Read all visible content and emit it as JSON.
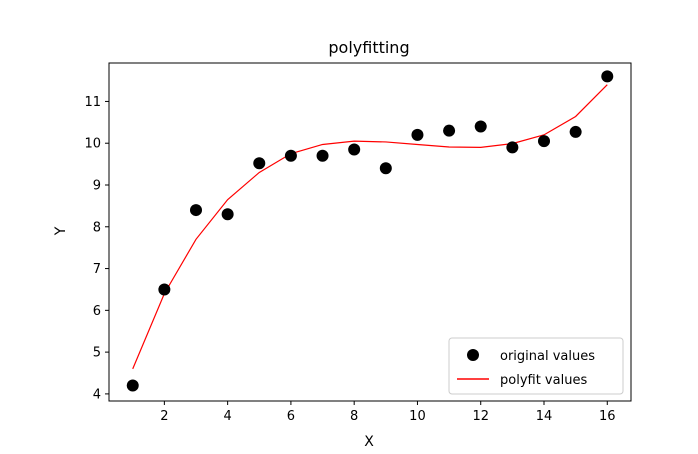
{
  "chart_data": {
    "type": "scatter",
    "title": "polyfitting",
    "xlabel": "X",
    "ylabel": "Y",
    "xlim": [
      0.25,
      16.75
    ],
    "ylim": [
      3.83,
      11.92
    ],
    "xticks": [
      2,
      4,
      6,
      8,
      10,
      12,
      14,
      16
    ],
    "yticks": [
      4,
      5,
      6,
      7,
      8,
      9,
      10,
      11
    ],
    "grid": false,
    "legend_position": "lower-right",
    "series": [
      {
        "name": "original values",
        "kind": "scatter",
        "color": "#000000",
        "x": [
          1,
          2,
          3,
          4,
          5,
          6,
          7,
          8,
          9,
          10,
          11,
          12,
          13,
          14,
          15,
          16
        ],
        "y": [
          4.2,
          6.5,
          8.4,
          8.3,
          9.52,
          9.7,
          9.7,
          9.85,
          9.4,
          10.2,
          10.3,
          10.4,
          9.9,
          10.05,
          10.27,
          11.6
        ]
      },
      {
        "name": "polyfit values",
        "kind": "line",
        "color": "#ff0000",
        "x": [
          1,
          2,
          3,
          4,
          5,
          6,
          7,
          8,
          9,
          10,
          11,
          12,
          13,
          14,
          15,
          16
        ],
        "y": [
          4.6,
          6.4,
          7.7,
          8.65,
          9.3,
          9.75,
          9.97,
          10.05,
          10.03,
          9.97,
          9.91,
          9.9,
          9.99,
          10.2,
          10.64,
          11.4
        ]
      }
    ]
  }
}
